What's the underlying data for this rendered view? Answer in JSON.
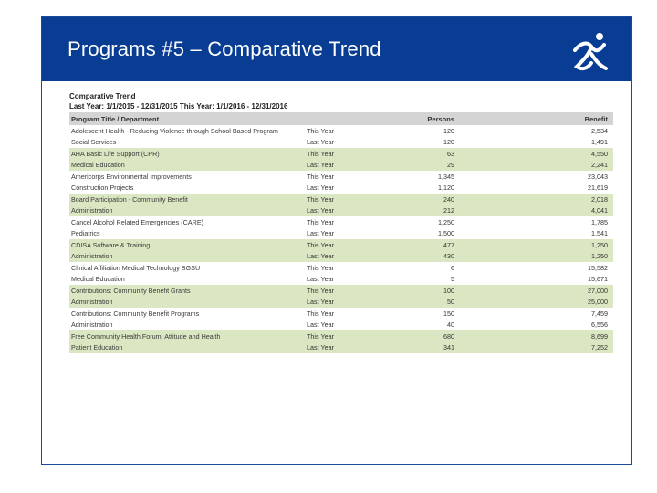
{
  "header": {
    "title": "Programs #5 – Comparative Trend",
    "logo": "stick-figure-logo-icon"
  },
  "report": {
    "title": "Comparative Trend",
    "range": "Last Year: 1/1/2015 - 12/31/2015  This Year: 1/1/2016 - 12/31/2016",
    "columns": {
      "program": "Program Title / Department",
      "persons": "Persons",
      "benefit": "Benefit"
    },
    "groups": [
      {
        "program": "Adolescent Health - Reducing Violence through School Based Program",
        "department": "Social Services",
        "this_year_label": "This Year",
        "last_year_label": "Last Year",
        "this_persons": "120",
        "last_persons": "120",
        "this_benefit": "2,534",
        "last_benefit": "1,491"
      },
      {
        "program": "AHA Basic Life Support (CPR)",
        "department": "Medical Education",
        "this_year_label": "This Year",
        "last_year_label": "Last Year",
        "this_persons": "63",
        "last_persons": "29",
        "this_benefit": "4,550",
        "last_benefit": "2,241"
      },
      {
        "program": "Americorps Environmental Improvements",
        "department": "Construction Projects",
        "this_year_label": "This Year",
        "last_year_label": "Last Year",
        "this_persons": "1,345",
        "last_persons": "1,120",
        "this_benefit": "23,043",
        "last_benefit": "21,619"
      },
      {
        "program": "Board Participation - Community Benefit",
        "department": "Administration",
        "this_year_label": "This Year",
        "last_year_label": "Last Year",
        "this_persons": "240",
        "last_persons": "212",
        "this_benefit": "2,018",
        "last_benefit": "4,041"
      },
      {
        "program": "Cancel Alcohol Related Emergencies (CARE)",
        "department": "Pediatrics",
        "this_year_label": "This Year",
        "last_year_label": "Last Year",
        "this_persons": "1,250",
        "last_persons": "1,500",
        "this_benefit": "1,785",
        "last_benefit": "1,541"
      },
      {
        "program": "CDISA Software & Training",
        "department": "Administration",
        "this_year_label": "This Year",
        "last_year_label": "Last Year",
        "this_persons": "477",
        "last_persons": "430",
        "this_benefit": "1,250",
        "last_benefit": "1,250"
      },
      {
        "program": "Clinical Affiliation  Medical Technology BGSU",
        "department": "Medical Education",
        "this_year_label": "This Year",
        "last_year_label": "Last Year",
        "this_persons": "6",
        "last_persons": "5",
        "this_benefit": "15,582",
        "last_benefit": "15,671"
      },
      {
        "program": "Contributions:  Community Benefit Grants",
        "department": "Administration",
        "this_year_label": "This Year",
        "last_year_label": "Last Year",
        "this_persons": "100",
        "last_persons": "50",
        "this_benefit": "27,000",
        "last_benefit": "25,000"
      },
      {
        "program": "Contributions:  Community Benefit Programs",
        "department": "Administration",
        "this_year_label": "This Year",
        "last_year_label": "Last Year",
        "this_persons": "150",
        "last_persons": "40",
        "this_benefit": "7,459",
        "last_benefit": "6,556"
      },
      {
        "program": "Free Community Health Forum:  Attitude and Health",
        "department": "Patient Education",
        "this_year_label": "This Year",
        "last_year_label": "Last Year",
        "this_persons": "680",
        "last_persons": "341",
        "this_benefit": "8,699",
        "last_benefit": "7,252"
      }
    ]
  },
  "colors": {
    "header_blue": "#083d93",
    "row_shade": "#dbe7c2",
    "column_header": "#d4d4d4"
  }
}
